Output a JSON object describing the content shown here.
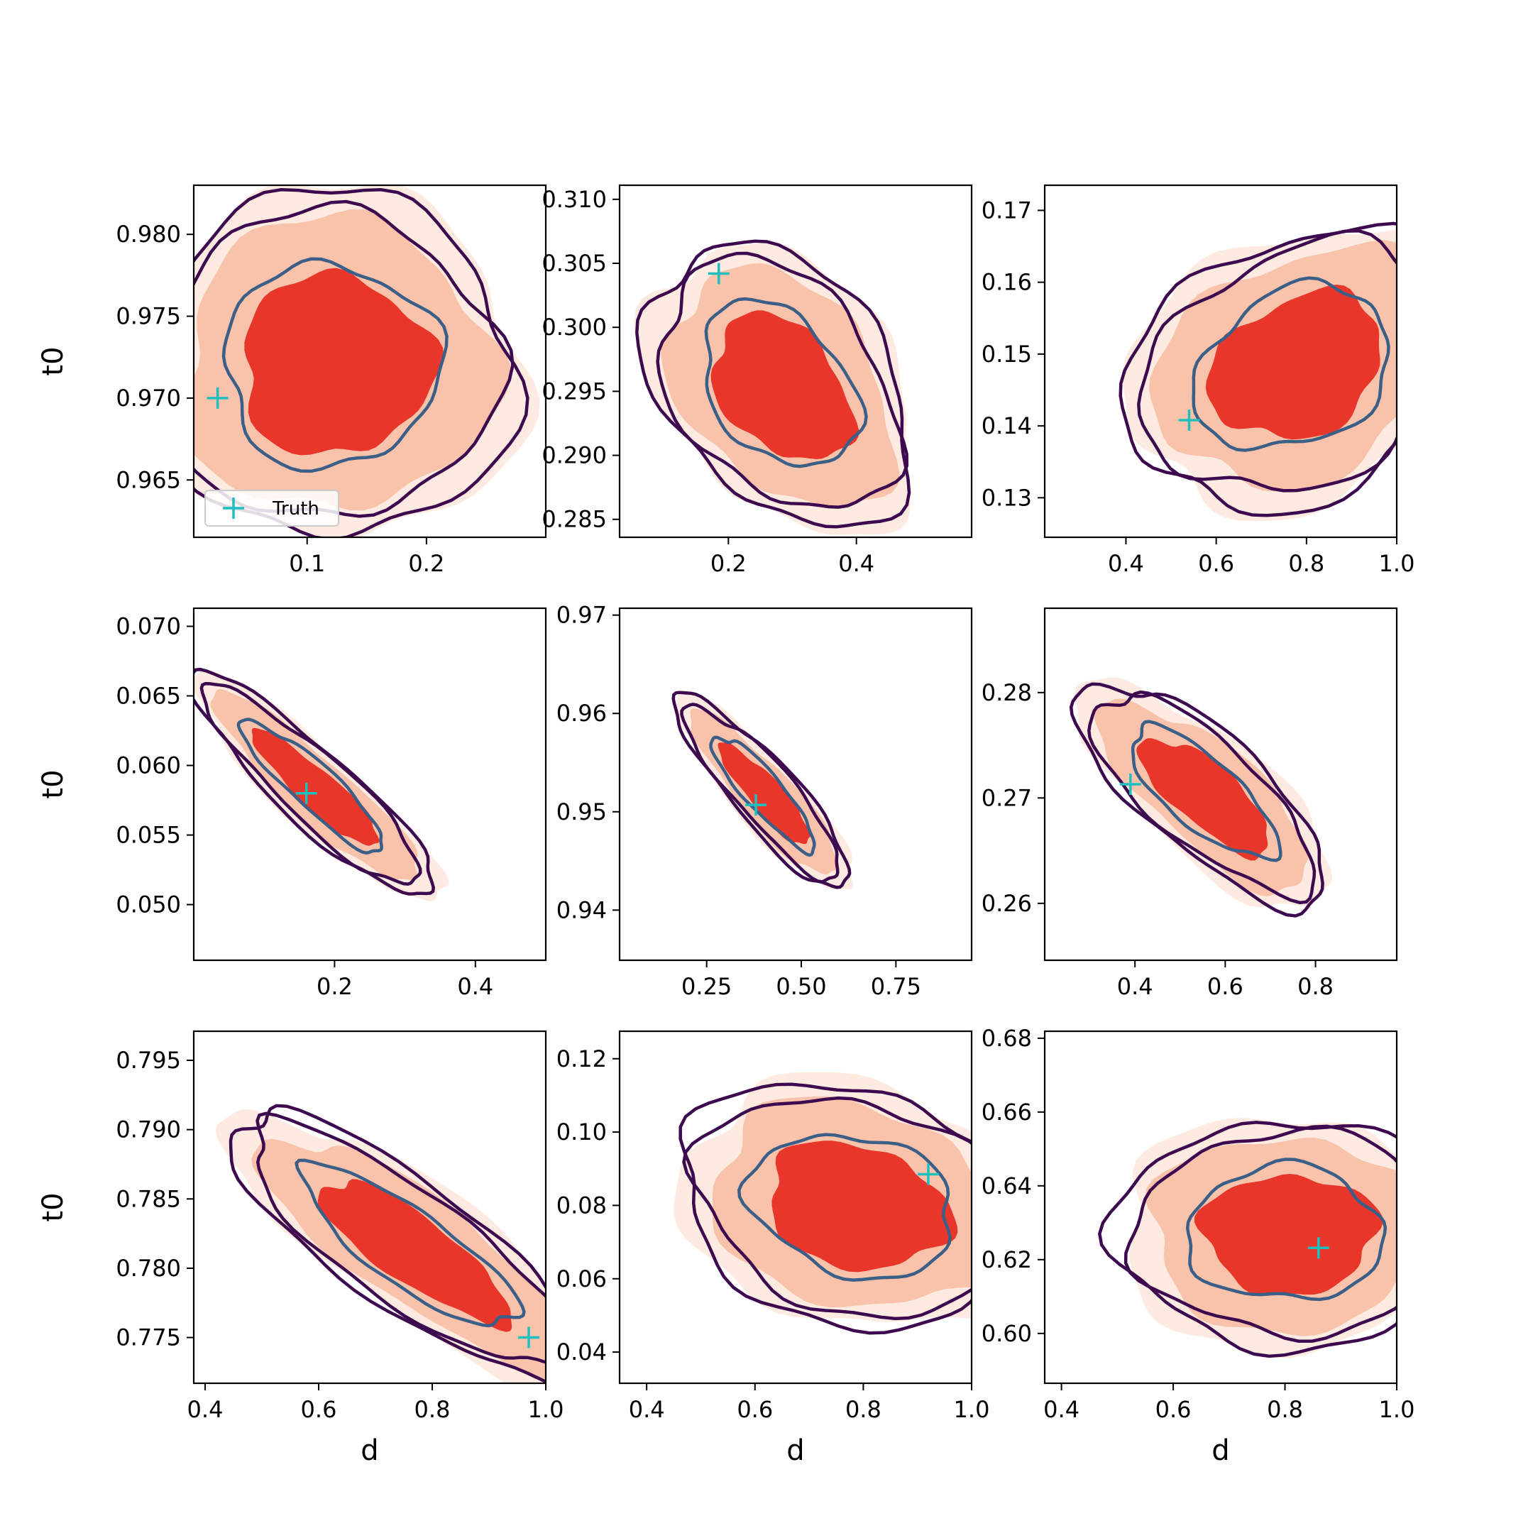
{
  "figure": {
    "title": ""
  },
  "legend": {
    "truth_label": "Truth"
  },
  "colors": {
    "fill_outer": "#fdebe1",
    "fill_mid": "#f9c3ab",
    "fill_inner": "#e8362b",
    "contour_outer": "#3d0a4f",
    "contour_inner": "#3b5f86",
    "truth_marker": "#1fbfbf"
  },
  "chart_data": [
    {
      "type": "contour",
      "row": 0,
      "col": 0,
      "xlabel": "",
      "ylabel": "t0",
      "xlim": [
        0.005,
        0.3
      ],
      "ylim": [
        0.9615,
        0.983
      ],
      "xticks": [
        "0.1",
        "0.2"
      ],
      "yticks": [
        "0.965",
        "0.970",
        "0.975",
        "0.980"
      ],
      "center": [
        0.12,
        0.972
      ],
      "spread": [
        0.067,
        0.0046
      ],
      "corr": 0.0,
      "truth": [
        0.025,
        0.97
      ],
      "legend": true
    },
    {
      "type": "contour",
      "row": 0,
      "col": 1,
      "xlabel": "",
      "ylabel": "",
      "xlim": [
        0.03,
        0.58
      ],
      "ylim": [
        0.2836,
        0.3111
      ],
      "xticks": [
        "0.2",
        "0.4"
      ],
      "yticks": [
        "0.285",
        "0.290",
        "0.295",
        "0.300",
        "0.305",
        "0.310"
      ],
      "center": [
        0.28,
        0.2955
      ],
      "spread": [
        0.09,
        0.0048
      ],
      "corr": -0.35,
      "truth": [
        0.185,
        0.3042
      ],
      "legend": false
    },
    {
      "type": "contour",
      "row": 0,
      "col": 2,
      "xlabel": "",
      "ylabel": "",
      "xlim": [
        0.22,
        1.0
      ],
      "ylim": [
        0.1245,
        0.1735
      ],
      "xticks": [
        "0.4",
        "0.6",
        "0.8",
        "1.0"
      ],
      "yticks": [
        "0.13",
        "0.14",
        "0.15",
        "0.16",
        "0.17"
      ],
      "center": [
        0.77,
        0.148
      ],
      "spread": [
        0.16,
        0.0085
      ],
      "corr": 0.25,
      "truth": [
        0.54,
        0.1408
      ],
      "legend": false
    },
    {
      "type": "contour",
      "row": 1,
      "col": 0,
      "xlabel": "",
      "ylabel": "t0",
      "xlim": [
        0.0,
        0.5
      ],
      "ylim": [
        0.046,
        0.0713
      ],
      "xticks": [
        "0.2",
        "0.4"
      ],
      "yticks": [
        "0.050",
        "0.055",
        "0.060",
        "0.065",
        "0.070"
      ],
      "center": [
        0.17,
        0.0585
      ],
      "spread": [
        0.075,
        0.0035
      ],
      "corr": -0.9,
      "truth": [
        0.16,
        0.058
      ],
      "legend": false
    },
    {
      "type": "contour",
      "row": 1,
      "col": 1,
      "xlabel": "",
      "ylabel": "",
      "xlim": [
        0.02,
        0.95
      ],
      "ylim": [
        0.9349,
        0.9707
      ],
      "xticks": [
        "0.25",
        "0.50",
        "0.75"
      ],
      "yticks": [
        "0.94",
        "0.95",
        "0.96",
        "0.97"
      ],
      "center": [
        0.4,
        0.952
      ],
      "spread": [
        0.1,
        0.0043
      ],
      "corr": -0.88,
      "truth": [
        0.38,
        0.9507
      ],
      "legend": false
    },
    {
      "type": "contour",
      "row": 1,
      "col": 2,
      "xlabel": "",
      "ylabel": "",
      "xlim": [
        0.2,
        0.98
      ],
      "ylim": [
        0.2546,
        0.288
      ],
      "xticks": [
        "0.4",
        "0.6",
        "0.8"
      ],
      "yticks": [
        "0.26",
        "0.27",
        "0.28"
      ],
      "center": [
        0.55,
        0.2705
      ],
      "spread": [
        0.12,
        0.0046
      ],
      "corr": -0.75,
      "truth": [
        0.39,
        0.2713
      ],
      "legend": false
    },
    {
      "type": "contour",
      "row": 2,
      "col": 0,
      "xlabel": "d",
      "ylabel": "t0",
      "xlim": [
        0.38,
        1.0
      ],
      "ylim": [
        0.7717,
        0.7971
      ],
      "xticks": [
        "0.4",
        "0.6",
        "0.8",
        "1.0"
      ],
      "yticks": [
        "0.775",
        "0.780",
        "0.785",
        "0.790",
        "0.795"
      ],
      "center": [
        0.76,
        0.7815
      ],
      "spread": [
        0.14,
        0.0043
      ],
      "corr": -0.83,
      "truth": [
        0.97,
        0.775
      ],
      "legend": false
    },
    {
      "type": "contour",
      "row": 2,
      "col": 1,
      "xlabel": "d",
      "ylabel": "",
      "xlim": [
        0.35,
        1.0
      ],
      "ylim": [
        0.0315,
        0.1275
      ],
      "xticks": [
        "0.4",
        "0.6",
        "0.8",
        "1.0"
      ],
      "yticks": [
        "0.04",
        "0.06",
        "0.08",
        "0.10",
        "0.12"
      ],
      "center": [
        0.78,
        0.08
      ],
      "spread": [
        0.14,
        0.0145
      ],
      "corr": -0.2,
      "truth": [
        0.92,
        0.0885
      ],
      "legend": false
    },
    {
      "type": "contour",
      "row": 2,
      "col": 2,
      "xlabel": "d",
      "ylabel": "",
      "xlim": [
        0.37,
        1.0
      ],
      "ylim": [
        0.5865,
        0.6819
      ],
      "xticks": [
        "0.4",
        "0.6",
        "0.8",
        "1.0"
      ],
      "yticks": [
        "0.60",
        "0.62",
        "0.64",
        "0.66",
        "0.68"
      ],
      "center": [
        0.8,
        0.627
      ],
      "spread": [
        0.13,
        0.0135
      ],
      "corr": 0.0,
      "truth": [
        0.86,
        0.6232
      ],
      "legend": false
    }
  ]
}
